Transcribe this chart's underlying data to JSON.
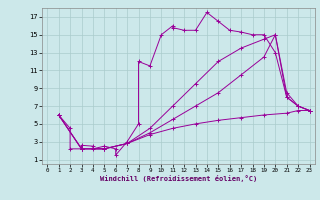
{
  "title": "",
  "xlabel": "Windchill (Refroidissement éolien,°C)",
  "ylabel": "",
  "bg_color": "#cce8ea",
  "line_color": "#990099",
  "grid_color": "#aacccc",
  "xlim": [
    -0.5,
    23.5
  ],
  "ylim": [
    0.5,
    18
  ],
  "xticks": [
    0,
    1,
    2,
    3,
    4,
    5,
    6,
    7,
    8,
    9,
    10,
    11,
    12,
    13,
    14,
    15,
    16,
    17,
    18,
    19,
    20,
    21,
    22,
    23
  ],
  "yticks": [
    1,
    3,
    5,
    7,
    9,
    11,
    13,
    15,
    17
  ],
  "series1": [
    [
      1,
      6.0
    ],
    [
      2,
      4.5
    ],
    [
      2,
      2.2
    ],
    [
      3,
      2.2
    ],
    [
      3,
      2.6
    ],
    [
      4,
      2.5
    ],
    [
      4,
      2.2
    ],
    [
      5,
      2.5
    ],
    [
      6,
      2.2
    ],
    [
      6,
      1.5
    ],
    [
      7,
      3.0
    ],
    [
      8,
      5.0
    ],
    [
      8,
      12.0
    ],
    [
      9,
      11.5
    ],
    [
      10,
      15.0
    ],
    [
      11,
      16.0
    ],
    [
      11,
      15.8
    ],
    [
      12,
      15.5
    ],
    [
      13,
      15.5
    ],
    [
      14,
      17.5
    ],
    [
      15,
      16.5
    ],
    [
      16,
      15.5
    ],
    [
      17,
      15.3
    ],
    [
      18,
      15.0
    ],
    [
      19,
      15.0
    ],
    [
      20,
      13.0
    ],
    [
      21,
      8.0
    ],
    [
      22,
      7.0
    ],
    [
      23,
      6.5
    ]
  ],
  "series2": [
    [
      1,
      6.0
    ],
    [
      3,
      2.2
    ],
    [
      5,
      2.2
    ],
    [
      7,
      2.8
    ],
    [
      9,
      4.5
    ],
    [
      11,
      7.0
    ],
    [
      13,
      9.5
    ],
    [
      15,
      12.0
    ],
    [
      17,
      13.5
    ],
    [
      19,
      14.5
    ],
    [
      20,
      15.0
    ],
    [
      21,
      8.0
    ],
    [
      22,
      7.0
    ],
    [
      23,
      6.5
    ]
  ],
  "series3": [
    [
      1,
      6.0
    ],
    [
      3,
      2.2
    ],
    [
      5,
      2.2
    ],
    [
      7,
      2.8
    ],
    [
      9,
      4.0
    ],
    [
      11,
      5.5
    ],
    [
      13,
      7.0
    ],
    [
      15,
      8.5
    ],
    [
      17,
      10.5
    ],
    [
      19,
      12.5
    ],
    [
      20,
      15.0
    ],
    [
      21,
      8.5
    ],
    [
      22,
      7.0
    ],
    [
      23,
      6.5
    ]
  ],
  "series4": [
    [
      1,
      6.0
    ],
    [
      3,
      2.2
    ],
    [
      5,
      2.2
    ],
    [
      7,
      2.8
    ],
    [
      9,
      3.8
    ],
    [
      11,
      4.5
    ],
    [
      13,
      5.0
    ],
    [
      15,
      5.4
    ],
    [
      17,
      5.7
    ],
    [
      19,
      6.0
    ],
    [
      21,
      6.2
    ],
    [
      22,
      6.5
    ],
    [
      23,
      6.5
    ]
  ]
}
